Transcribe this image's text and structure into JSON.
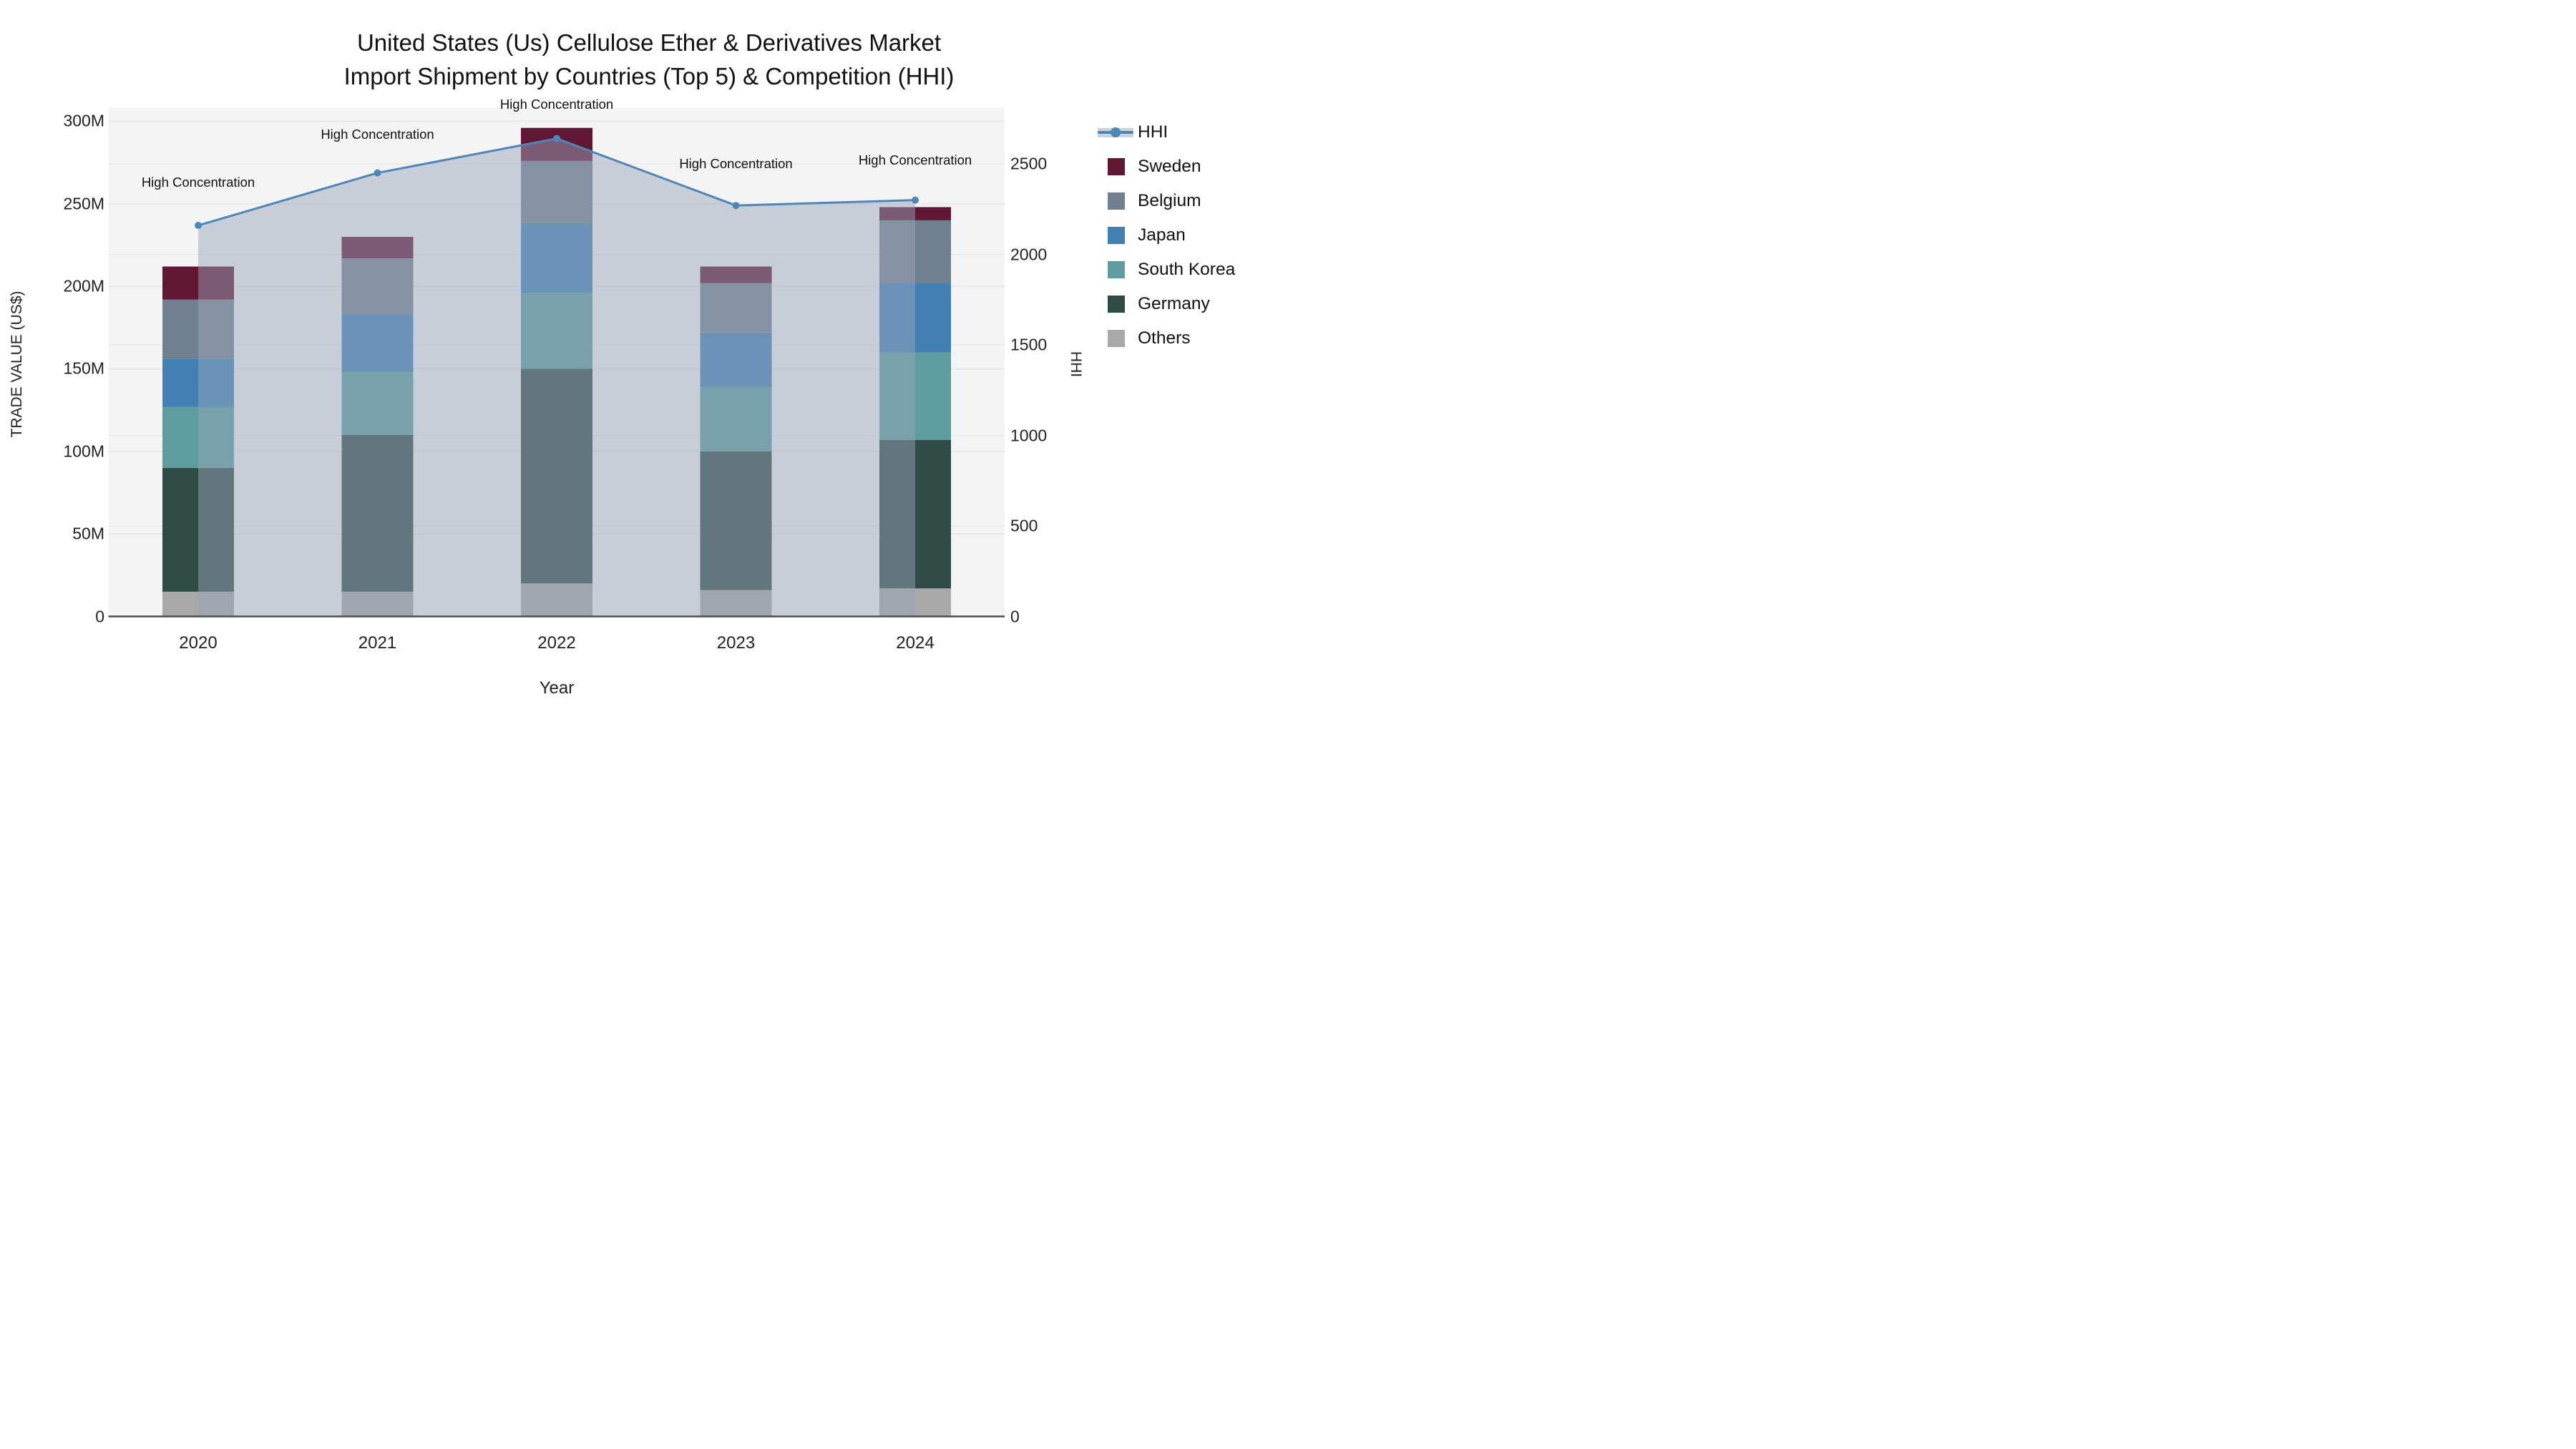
{
  "title": {
    "line1": "United States (Us) Cellulose Ether & Derivatives Market",
    "line2": "Import Shipment by Countries (Top 5) & Competition (HHI)"
  },
  "axes": {
    "left_title": "TRADE VALUE (US$)",
    "right_title": "HHI",
    "x_title": "Year",
    "left_ticks": [
      "0",
      "50M",
      "100M",
      "150M",
      "200M",
      "250M",
      "300M"
    ],
    "left_tick_values": [
      0,
      50,
      100,
      150,
      200,
      250,
      300
    ],
    "right_ticks": [
      "0",
      "500",
      "1000",
      "1500",
      "2000",
      "2500"
    ],
    "right_tick_values": [
      0,
      500,
      1000,
      1500,
      2000,
      2500
    ]
  },
  "colors": {
    "hhi_line": "#4d87ba",
    "sweden": "#611733",
    "belgium": "#71808f",
    "japan": "#4280b4",
    "south_korea": "#5d9da0",
    "germany": "#2e4b45",
    "others": "#a8a8a8",
    "area_fill": "rgba(152,165,186,0.48)",
    "plot_bg": "#f4f4f4",
    "axis_line": "#4d4d4d",
    "gridline": "rgba(0,0,0,0.045)"
  },
  "legend": {
    "items": [
      {
        "label": "HHI",
        "type": "line",
        "color": "#4d87ba"
      },
      {
        "label": "Sweden",
        "type": "box",
        "color": "#611733"
      },
      {
        "label": "Belgium",
        "type": "box",
        "color": "#71808f"
      },
      {
        "label": "Japan",
        "type": "box",
        "color": "#4280b4"
      },
      {
        "label": "South Korea",
        "type": "box",
        "color": "#5d9da0"
      },
      {
        "label": "Germany",
        "type": "box",
        "color": "#2e4b45"
      },
      {
        "label": "Others",
        "type": "box",
        "color": "#a8a8a8"
      }
    ]
  },
  "chart_data": {
    "type": "bar",
    "subtype": "stacked bars (left axis, US$ millions) + HHI line (right axis)",
    "categories": [
      "2020",
      "2021",
      "2022",
      "2023",
      "2024"
    ],
    "stack_order_bottom_to_top": [
      "Others",
      "Germany",
      "South Korea",
      "Japan",
      "Belgium",
      "Sweden"
    ],
    "series": [
      {
        "name": "Others",
        "color_key": "others",
        "values": [
          15,
          15,
          20,
          16,
          17
        ]
      },
      {
        "name": "Germany",
        "color_key": "germany",
        "values": [
          75,
          95,
          130,
          84,
          90
        ]
      },
      {
        "name": "South Korea",
        "color_key": "south_korea",
        "values": [
          37,
          38,
          46,
          39,
          53
        ]
      },
      {
        "name": "Japan",
        "color_key": "japan",
        "values": [
          29,
          35,
          42,
          33,
          42
        ]
      },
      {
        "name": "Belgium",
        "color_key": "belgium",
        "values": [
          36,
          34,
          38,
          30,
          38
        ]
      },
      {
        "name": "Sweden",
        "color_key": "sweden",
        "values": [
          20,
          13,
          20,
          10,
          8
        ]
      }
    ],
    "bar_totals": [
      212,
      230,
      296,
      212,
      248
    ],
    "line_series": {
      "name": "HHI",
      "axis": "right",
      "values": [
        2160,
        2450,
        2640,
        2270,
        2300
      ]
    },
    "annotations": [
      {
        "text": "High Concentration",
        "x_index": 0
      },
      {
        "text": "High Concentration",
        "x_index": 1
      },
      {
        "text": "High Concentration",
        "x_index": 2
      },
      {
        "text": "High Concentration",
        "x_index": 3
      },
      {
        "text": "High Concentration",
        "x_index": 4
      }
    ],
    "ylabel_left": "TRADE VALUE (US$)",
    "ylabel_right": "HHI",
    "xlabel": "Year",
    "ylim_left_millions": [
      0,
      308
    ],
    "ylim_right": [
      0,
      2810
    ],
    "grid": true,
    "legend_position": "right",
    "area_fill_under_line": true
  }
}
